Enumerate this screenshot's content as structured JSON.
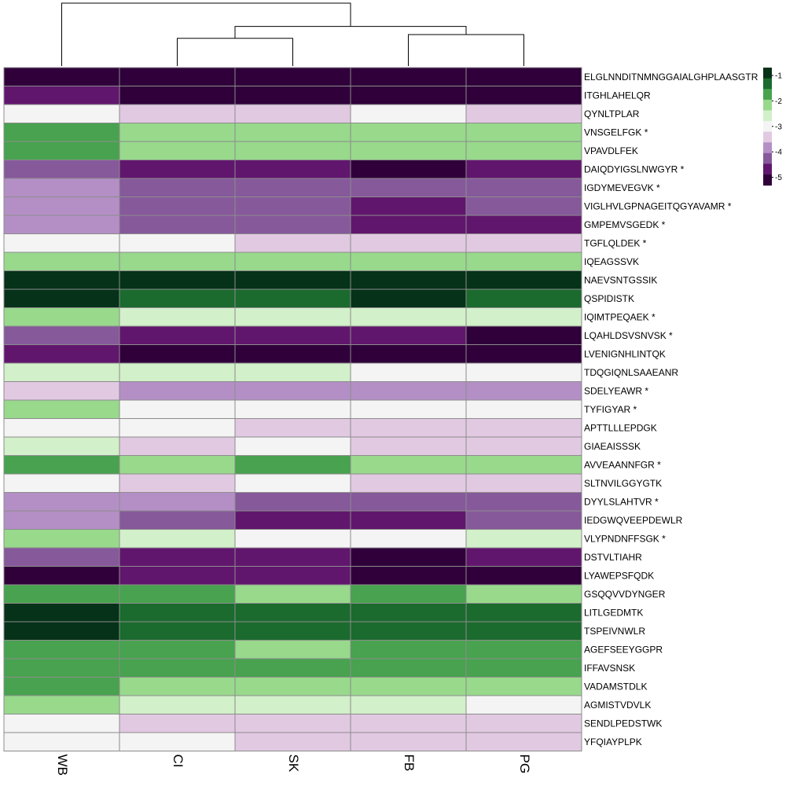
{
  "chart_data": {
    "type": "heatmap",
    "title": "",
    "columns": [
      "WB",
      "CI",
      "SK",
      "FB",
      "PG"
    ],
    "rows": [
      "ELGLNNDITNMNGGAIALGHPLAASGTR",
      "ITGHLAHELQR",
      "QYNLTPLAR",
      "VNSGELFGK *",
      "VPAVDLFEK",
      "DAIQDYIGSLNWGYR *",
      "IGDYMEVEGVK *",
      "VIGLHVLGPNAGEITQGYAVAMR *",
      "GMPEMVSGEDK *",
      "TGFLQLDEK *",
      "IQEAGSSVK",
      "NAEVSNTGSSIK",
      "QSPIDISTK",
      "IQIMTPEQAEK *",
      "LQAHLDSVSNVSK *",
      "LVENIGNHLINTQK",
      "TDQGIQNLSAAEANR",
      "SDELYEAWR *",
      "TYFIGYAR *",
      "APTTLLLEPDGK",
      "GIAEAISSSK",
      "AVVEAANNFGR *",
      "SLTNVILGGYGTK",
      "DYYLSLAHTVR *",
      "IEDGWQVEEPDEWLR",
      "VLYPNDNFFSGK *",
      "DSTVLTIAHR",
      "LYAWEPSFQDK",
      "GSQQVVDYNGER",
      "LITLGEDMTK",
      "TSPEIVNWLR",
      "AGEFSEEYGGPR",
      "IFFAVSNSK",
      "VADAMSTDLK",
      "AGMISTVDVLK",
      "SENDLPEDSTWK",
      "YFQIAYPLPK"
    ],
    "values": [
      [
        -5,
        -5,
        -5,
        -5,
        -5
      ],
      [
        -4.5,
        -5,
        -5,
        -5,
        -5
      ],
      [
        -3,
        -3.5,
        -3.5,
        -3,
        -3.5
      ],
      [
        -2,
        -2.5,
        -2.5,
        -2.5,
        -2.5
      ],
      [
        -2,
        -2.5,
        -2.5,
        -2.5,
        -2.5
      ],
      [
        -4,
        -4.5,
        -4.5,
        -5,
        -4.5
      ],
      [
        -3.75,
        -4,
        -4,
        -4,
        -4
      ],
      [
        -3.75,
        -4,
        -4,
        -4.5,
        -4
      ],
      [
        -3.75,
        -4,
        -4,
        -4.5,
        -4.5
      ],
      [
        -3,
        -3,
        -3.5,
        -3.5,
        -3.5
      ],
      [
        -2.5,
        -2.5,
        -2.5,
        -2.5,
        -2.5
      ],
      [
        -1,
        -1,
        -1,
        -1,
        -1
      ],
      [
        -1,
        -1.5,
        -1.5,
        -1,
        -1.5
      ],
      [
        -2.5,
        -2.75,
        -2.75,
        -2.75,
        -2.75
      ],
      [
        -4,
        -4.5,
        -4.5,
        -4.5,
        -5
      ],
      [
        -4.5,
        -5,
        -5,
        -5,
        -5
      ],
      [
        -2.75,
        -2.75,
        -2.75,
        -3,
        -3
      ],
      [
        -3.5,
        -3.75,
        -3.75,
        -3.75,
        -3.75
      ],
      [
        -2.5,
        -3,
        -3,
        -3,
        -3
      ],
      [
        -3,
        -3,
        -3.5,
        -3.5,
        -3.5
      ],
      [
        -2.75,
        -3.5,
        -3,
        -3.5,
        -3.5
      ],
      [
        -2,
        -2.5,
        -2,
        -2.5,
        -2.5
      ],
      [
        -3,
        -3.5,
        -3,
        -3.5,
        -3.5
      ],
      [
        -3.75,
        -3.75,
        -4,
        -4,
        -4
      ],
      [
        -3.75,
        -4,
        -4.5,
        -4.5,
        -4
      ],
      [
        -2.5,
        -2.75,
        -3,
        -3,
        -2.75
      ],
      [
        -4,
        -4.5,
        -4.5,
        -5,
        -4.5
      ],
      [
        -5,
        -4.5,
        -4.5,
        -5,
        -5
      ],
      [
        -2,
        -2,
        -2.5,
        -2,
        -2.5
      ],
      [
        -1,
        -1.5,
        -1.5,
        -1.5,
        -1.5
      ],
      [
        -1,
        -1.5,
        -1.5,
        -1.5,
        -1.5
      ],
      [
        -2,
        -2,
        -2.5,
        -2,
        -2
      ],
      [
        -2,
        -2,
        -2,
        -2,
        -2
      ],
      [
        -2,
        -2.5,
        -2.5,
        -2.5,
        -2.5
      ],
      [
        -2.5,
        -2.75,
        -2.75,
        -2.75,
        -3
      ],
      [
        -3,
        -3.5,
        -3.5,
        -3.5,
        -3.5
      ],
      [
        -3,
        -3,
        -3.5,
        -3.5,
        -3.5
      ]
    ],
    "colorscale": [
      {
        "value": -1,
        "color": "#053218"
      },
      {
        "value": -1.5,
        "color": "#1b6a2e"
      },
      {
        "value": -2,
        "color": "#48a24f"
      },
      {
        "value": -2.5,
        "color": "#98d98c"
      },
      {
        "value": -2.75,
        "color": "#d2f0c9"
      },
      {
        "value": -3,
        "color": "#f4f4f4"
      },
      {
        "value": -3.5,
        "color": "#e2c9e2"
      },
      {
        "value": -3.75,
        "color": "#b48fc6"
      },
      {
        "value": -4,
        "color": "#86599b"
      },
      {
        "value": -4.5,
        "color": "#61166d"
      },
      {
        "value": -5,
        "color": "#2f003a"
      }
    ],
    "legend": {
      "ticks": [
        -1,
        -2,
        -3,
        -4,
        -5
      ],
      "placement": "top-right"
    },
    "column_dendrogram": {
      "leaf_order": [
        "WB",
        "CI",
        "SK",
        "FB",
        "PG"
      ],
      "merges": [
        {
          "left": "CI",
          "right": "SK",
          "height": 0.44
        },
        {
          "left": "FB",
          "right": "PG",
          "height": 0.5
        },
        {
          "left": "CI+SK",
          "right": "FB+PG",
          "height": 0.63
        },
        {
          "left": "WB",
          "right": "CI+SK+FB+PG",
          "height": 1.0
        }
      ]
    }
  }
}
